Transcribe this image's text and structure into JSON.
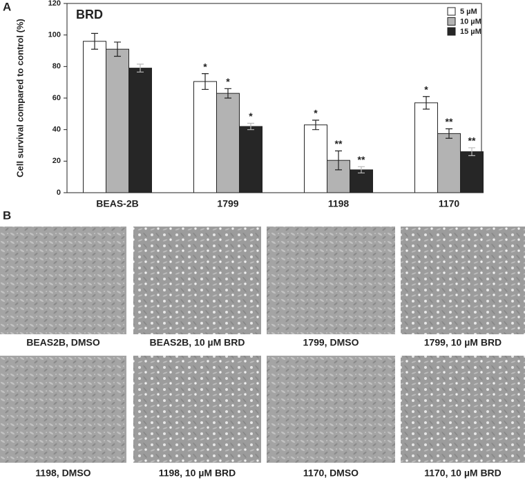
{
  "chart_data": {
    "type": "bar",
    "title": "BRD",
    "y_label": "Cell survival compared to control (%)",
    "categories": [
      "BEAS-2B",
      "1799",
      "1198",
      "1170"
    ],
    "ylim": [
      0,
      120
    ],
    "yticks": [
      0,
      20,
      40,
      60,
      80,
      100,
      120
    ],
    "legend_position": "upper right",
    "series": [
      {
        "name": "5 µM",
        "color": "#ffffff",
        "values": [
          96,
          70.5,
          43,
          57
        ],
        "errors": [
          5,
          5,
          3,
          4
        ],
        "annotations": [
          null,
          "*",
          "*",
          "*"
        ]
      },
      {
        "name": "10 µM",
        "color": "#b3b3b3",
        "values": [
          91,
          63,
          20.5,
          37.5
        ],
        "errors": [
          4.5,
          3,
          6,
          3
        ],
        "annotations": [
          null,
          "*",
          "**",
          "**"
        ]
      },
      {
        "name": "15 µM",
        "color": "#262626",
        "values": [
          79,
          42,
          14.5,
          26
        ],
        "errors": [
          2.5,
          2,
          2,
          2.5
        ],
        "annotations": [
          null,
          "*",
          "**",
          "**"
        ]
      }
    ]
  },
  "panel_a": {
    "label": "A"
  },
  "panel_b": {
    "label": "B",
    "images": [
      {
        "caption": "BEAS2B, DMSO"
      },
      {
        "caption": "BEAS2B, 10 µM BRD"
      },
      {
        "caption": "1799, DMSO"
      },
      {
        "caption": "1799, 10 µM BRD"
      },
      {
        "caption": "1198, DMSO"
      },
      {
        "caption": "1198, 10 µM BRD"
      },
      {
        "caption": "1170, DMSO"
      },
      {
        "caption": "1170, 10 µM BRD"
      }
    ]
  }
}
